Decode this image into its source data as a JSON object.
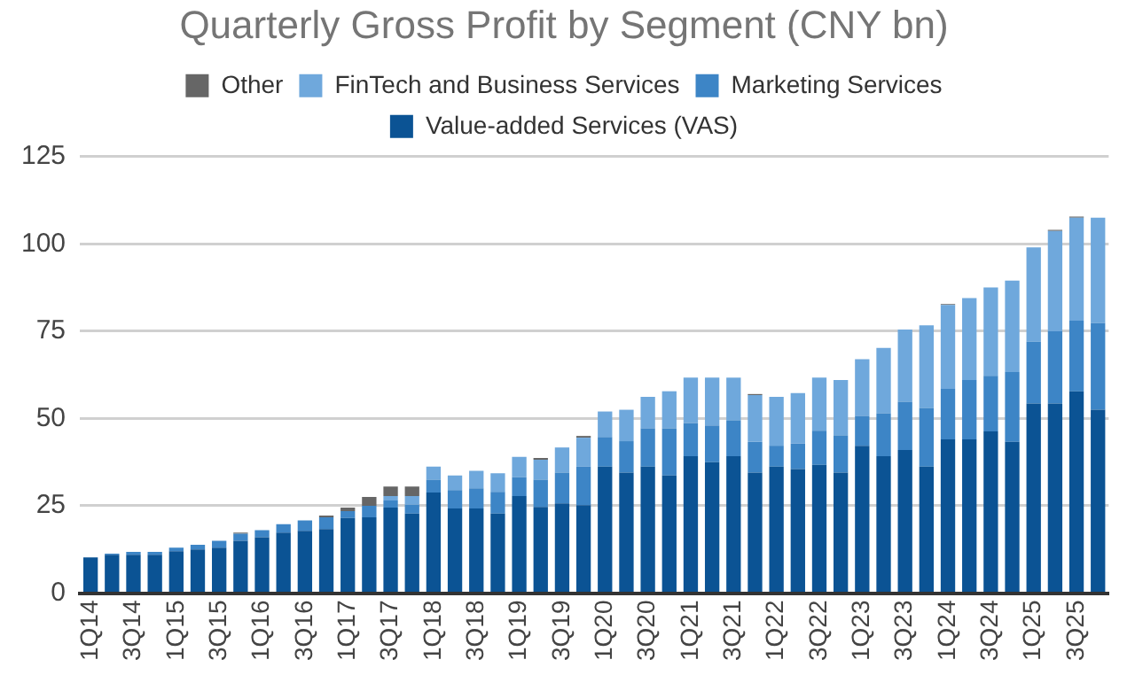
{
  "chart_data": {
    "type": "bar",
    "title": "Quarterly Gross Profit by Segment (CNY bn)",
    "stacked": true,
    "legend": "top",
    "grid": "y",
    "categories": [
      "1Q14",
      null,
      "3Q14",
      null,
      "1Q15",
      null,
      "3Q15",
      null,
      "1Q16",
      null,
      "3Q16",
      null,
      "1Q17",
      null,
      "3Q17",
      null,
      "1Q18",
      null,
      "3Q18",
      null,
      "1Q19",
      null,
      "3Q19",
      null,
      "1Q20",
      null,
      "3Q20",
      null,
      "1Q21",
      null,
      "3Q21",
      null,
      "1Q22",
      null,
      "3Q22",
      null,
      "1Q23",
      null,
      "3Q23",
      null,
      "1Q24",
      null,
      "3Q24",
      null,
      "1Q25",
      null,
      "3Q25",
      null
    ],
    "series": [
      {
        "name": "Value-added Services (VAS)",
        "color": "#0b5394",
        "values": [
          10.2,
          11,
          11,
          11,
          12,
          12.5,
          13,
          15,
          16,
          17.3,
          17.8,
          18.3,
          21.5,
          21.7,
          24.5,
          22.8,
          28.8,
          24.2,
          24.2,
          22.8,
          27.8,
          24.7,
          25.7,
          25.2,
          36.2,
          34.5,
          36.2,
          33.7,
          39.2,
          37.5,
          39.2,
          34.5,
          36.2,
          35.5,
          36.7,
          34.5,
          42.2,
          39.2,
          41,
          36.2,
          44,
          44,
          46.3,
          43.3,
          54.3,
          54.3,
          57.8,
          52.5
        ]
      },
      {
        "name": "Marketing Services",
        "color": "#3d85c6",
        "values": [
          0,
          0.3,
          0.8,
          0.8,
          1,
          1.3,
          2,
          2,
          2,
          2.4,
          3,
          3.4,
          2,
          3.3,
          2,
          2.5,
          3.7,
          5.3,
          5.8,
          6.2,
          5.4,
          7.8,
          8.8,
          11,
          8.5,
          9,
          11,
          13.5,
          9.5,
          10.5,
          10.3,
          8.8,
          6,
          7.3,
          9.8,
          10.7,
          8.5,
          12.3,
          13.8,
          16.8,
          14.5,
          17,
          15.9,
          20,
          17.7,
          20.7,
          20.2,
          24.8
        ]
      },
      {
        "name": "FinTech and Business Services",
        "color": "#6fa8dc",
        "values": [
          0,
          0,
          0,
          0,
          0,
          0,
          0,
          0,
          0,
          0,
          0,
          0,
          0,
          0,
          1.3,
          2.5,
          3.7,
          4.2,
          5,
          5.3,
          5.8,
          5.7,
          7.2,
          8.3,
          7.3,
          9,
          9,
          10.6,
          13,
          13.7,
          12.2,
          13.4,
          14,
          14.5,
          15.2,
          15.8,
          16.3,
          18.7,
          20.7,
          23.7,
          24,
          23.5,
          25.3,
          26.2,
          27,
          28.7,
          29.5,
          30.2
        ]
      },
      {
        "name": "Other",
        "color": "#666666",
        "values": [
          0,
          0,
          0,
          0,
          0,
          0,
          0,
          0.3,
          0,
          0,
          0,
          0.5,
          1,
          2.5,
          2.7,
          2.7,
          0,
          0,
          0,
          0,
          0,
          0.5,
          0,
          0.5,
          0,
          0,
          0,
          0,
          0,
          0,
          0,
          0.3,
          0,
          0,
          0,
          0,
          0,
          0,
          0,
          0,
          0.3,
          0,
          0,
          0,
          0,
          0.3,
          0.3,
          0
        ]
      }
    ],
    "ylim": [
      0,
      125
    ],
    "yticks": [
      0,
      25,
      50,
      75,
      100,
      125
    ]
  }
}
